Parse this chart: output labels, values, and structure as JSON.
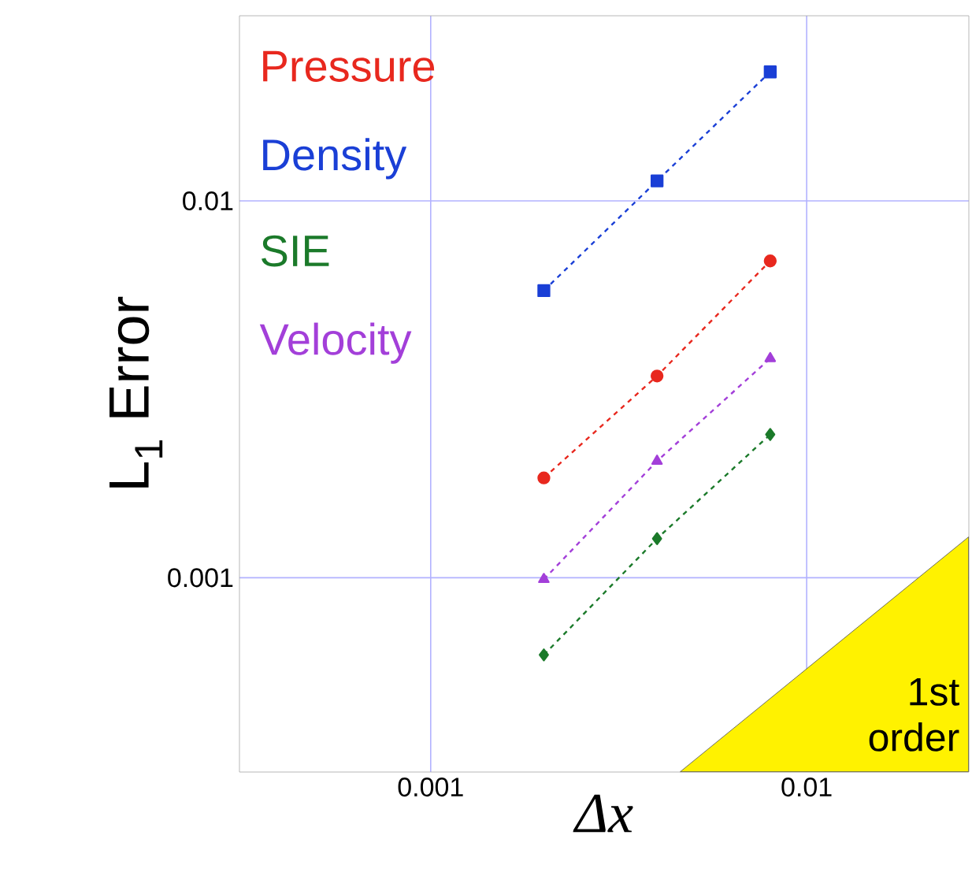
{
  "chart_data": {
    "type": "line",
    "xlabel": "Δx",
    "ylabel": "L$_{1}$ Error",
    "log": "xy",
    "grid": true,
    "legend": "top left",
    "line_style": "dashed",
    "xlim": [
      0.00031,
      0.027
    ],
    "ylim": [
      0.000305,
      0.031
    ],
    "xticks": [
      0.001,
      0.01
    ],
    "yticks": [
      0.001,
      0.01
    ],
    "x": [
      0.002,
      0.004,
      0.008
    ],
    "series": [
      {
        "name": "Pressure",
        "color": "#e8281e",
        "marker": "circle",
        "values": [
          0.00184,
          0.00343,
          0.00693
        ]
      },
      {
        "name": "Density",
        "color": "#1a3fd6",
        "marker": "square",
        "values": [
          0.00578,
          0.0113,
          0.022
        ]
      },
      {
        "name": "SIE",
        "color": "#1b7a2a",
        "marker": "diamond",
        "values": [
          0.000624,
          0.00127,
          0.0024
        ]
      },
      {
        "name": "Velocity",
        "color": "#a33fd9",
        "marker": "triangle",
        "values": [
          0.00099,
          0.00204,
          0.00382
        ]
      }
    ],
    "annotations": [
      "1st order"
    ]
  }
}
